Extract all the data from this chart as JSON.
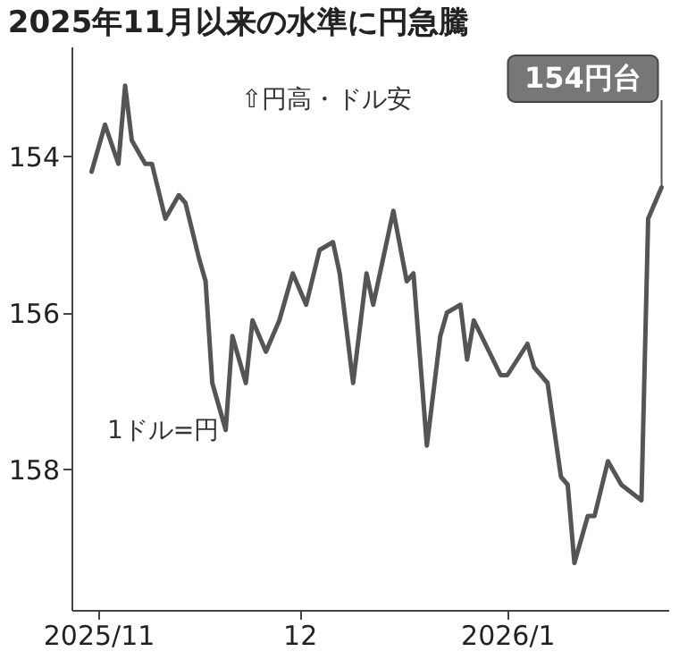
{
  "chart_data": {
    "type": "line",
    "title": "2025年11月以来の水準に円急騰",
    "x": [
      "2025-10-31",
      "2025-11-02",
      "2025-11-04",
      "2025-11-05",
      "2025-11-06",
      "2025-11-08",
      "2025-11-09",
      "2025-11-11",
      "2025-11-13",
      "2025-11-14",
      "2025-11-16",
      "2025-11-17",
      "2025-11-18",
      "2025-11-20",
      "2025-11-21",
      "2025-11-23",
      "2025-11-24",
      "2025-11-26",
      "2025-11-28",
      "2025-11-30",
      "2025-12-02",
      "2025-12-04",
      "2025-12-06",
      "2025-12-07",
      "2025-12-09",
      "2025-12-11",
      "2025-12-12",
      "2025-12-15",
      "2025-12-17",
      "2025-12-18",
      "2025-12-20",
      "2025-12-22",
      "2025-12-23",
      "2025-12-25",
      "2025-12-26",
      "2025-12-27",
      "2025-12-31",
      "2026-01-01",
      "2026-01-04",
      "2026-01-05",
      "2026-01-07",
      "2026-01-09",
      "2026-01-10",
      "2026-01-11",
      "2026-01-13",
      "2026-01-14",
      "2026-01-16",
      "2026-01-18",
      "2026-01-21",
      "2026-01-22",
      "2026-01-24"
    ],
    "series": [
      {
        "color": "#555555",
        "values": [
          154.2,
          153.6,
          154.1,
          153.1,
          153.8,
          154.1,
          154.1,
          154.8,
          154.5,
          154.6,
          155.3,
          155.6,
          156.9,
          157.5,
          156.3,
          156.9,
          156.1,
          156.5,
          156.1,
          155.5,
          155.9,
          155.2,
          155.1,
          155.5,
          156.9,
          155.5,
          155.9,
          154.7,
          155.6,
          155.5,
          157.7,
          156.3,
          156.0,
          155.9,
          156.6,
          156.1,
          156.8,
          156.8,
          156.4,
          156.7,
          156.9,
          158.1,
          158.2,
          159.2,
          158.6,
          158.6,
          157.9,
          158.2,
          158.4,
          154.8,
          154.4
        ]
      }
    ],
    "xlim": [
      "2025-10-28",
      "2026-01-25"
    ],
    "xticks": [
      {
        "value": "2025-11-01",
        "label": "2025/11"
      },
      {
        "value": "2025-12-01",
        "label": "12"
      },
      {
        "value": "2026-01-01",
        "label": "2026/1"
      }
    ],
    "ylim": [
      159.8,
      152.6
    ],
    "yticks": [
      154,
      156,
      158
    ],
    "grid": false,
    "marker": "none",
    "line_style": "solid",
    "annotations": [
      {
        "text": "154円台",
        "x": "2026-01-24",
        "y": 154.4
      },
      "⇧円高・ドル安",
      "1ドル=円"
    ]
  }
}
